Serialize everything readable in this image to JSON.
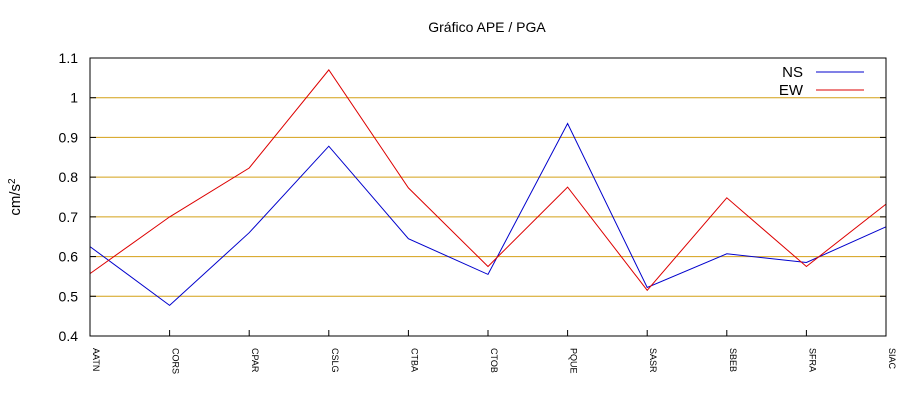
{
  "chart_data": {
    "type": "line",
    "title": "Gráfico  APE / PGA",
    "ylabel_base": "cm/s",
    "ylabel_exp": "2",
    "xlabel": "",
    "ylim": [
      0.4,
      1.1
    ],
    "y_ticks": [
      "0.4",
      "0.5",
      "0.6",
      "0.7",
      "0.8",
      "0.9",
      "1",
      "1.1"
    ],
    "grid_y": true,
    "grid_color": "#d4a017",
    "legend_position": "top-right",
    "categories": [
      "AATN",
      "CORS",
      "CPAR",
      "CSLG",
      "CTBA",
      "CTOB",
      "PQUE",
      "SASR",
      "SBEB",
      "SFRA",
      "SIAC"
    ],
    "series": [
      {
        "name": "NS",
        "color": "#0000cc",
        "values": [
          0.625,
          0.477,
          0.66,
          0.878,
          0.645,
          0.555,
          0.935,
          0.522,
          0.607,
          0.585,
          0.675
        ]
      },
      {
        "name": "EW",
        "color": "#dd0000",
        "values": [
          0.557,
          0.7,
          0.823,
          1.07,
          0.773,
          0.575,
          0.775,
          0.515,
          0.748,
          0.575,
          0.732
        ]
      }
    ]
  }
}
